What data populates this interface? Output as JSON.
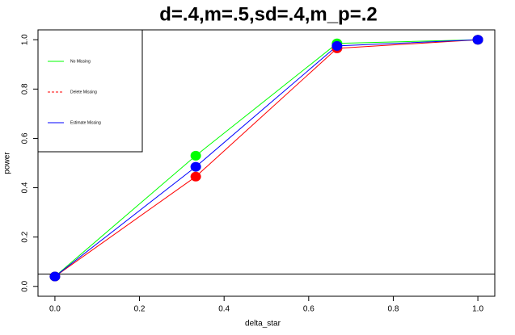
{
  "chart_data": {
    "type": "line",
    "title": "d=.4,m=.5,sd=.4,m_p=.2",
    "x_label": "delta_star",
    "y_label": "power",
    "x": [
      0,
      0.333,
      0.667,
      1.0
    ],
    "series": [
      {
        "name": "No Missing",
        "color": "#00ff00",
        "values": [
          0.04,
          0.53,
          0.985,
          1.0
        ]
      },
      {
        "name": "Delete Missing",
        "color": "#ff0000",
        "values": [
          0.04,
          0.445,
          0.965,
          1.0
        ]
      },
      {
        "name": "Estimate Missing",
        "color": "#0000ff",
        "values": [
          0.04,
          0.485,
          0.975,
          1.0
        ]
      }
    ],
    "xlim": [
      -0.04,
      1.04
    ],
    "ylim": [
      -0.04,
      1.04
    ],
    "xticks": [
      {
        "value": 0,
        "label": "0.0"
      },
      0.2,
      0.4,
      0.6,
      0.8,
      {
        "value": 1,
        "label": "1.0"
      }
    ],
    "yticks": [
      {
        "value": 0,
        "label": "0.0"
      },
      0.2,
      0.4,
      0.6,
      0.8,
      {
        "value": 1,
        "label": "1.0"
      }
    ],
    "reference_line": 0.05,
    "legend": "top-left"
  }
}
